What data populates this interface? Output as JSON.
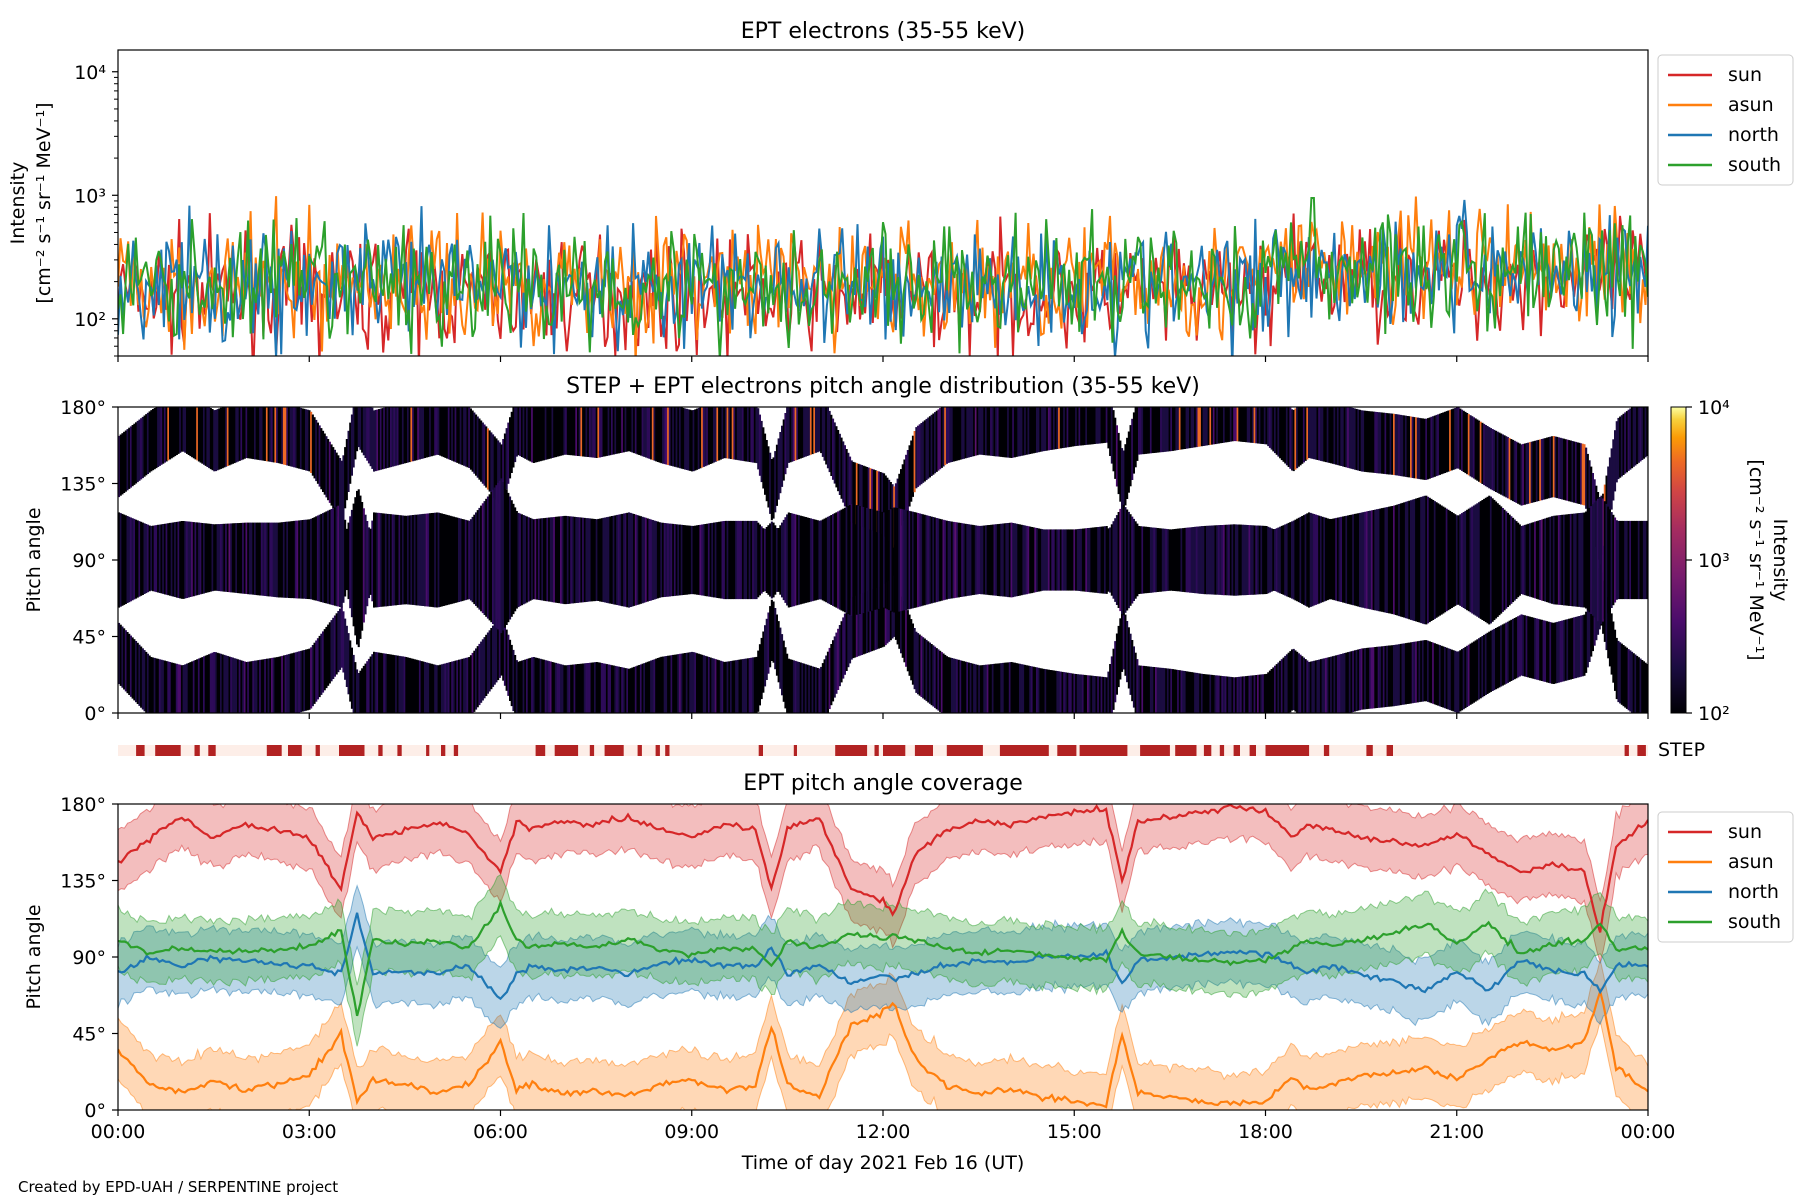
{
  "footer": "Created by EPD-UAH / SERPENTINE project",
  "chart_data": [
    {
      "type": "line",
      "title": "EPT electrons (35-55 keV)",
      "ylabel_line1": "Intensity",
      "ylabel_line2": "[cm⁻² s⁻¹ sr⁻¹ MeV⁻¹]",
      "yscale": "log",
      "ylim": [
        50,
        15000
      ],
      "yticks": [
        {
          "value": 100,
          "label": "10²"
        },
        {
          "value": 1000,
          "label": "10³"
        },
        {
          "value": 10000,
          "label": "10⁴"
        }
      ],
      "xlim": [
        "00:00",
        "24:00"
      ],
      "legend_position": "outside-right",
      "series": [
        {
          "name": "sun",
          "color": "#d62728",
          "baseline": 160,
          "spread": 0.55
        },
        {
          "name": "asun",
          "color": "#ff7f0e",
          "baseline": 200,
          "spread": 0.6
        },
        {
          "name": "north",
          "color": "#1f77b4",
          "baseline": 190,
          "spread": 0.6
        },
        {
          "name": "south",
          "color": "#2ca02c",
          "baseline": 190,
          "spread": 0.6
        }
      ],
      "notes_visible": {
        "peak_near": "18:45",
        "peak_value": 950
      }
    },
    {
      "type": "heatmap",
      "title": "STEP + EPT electrons pitch angle distribution (35-55 keV)",
      "ylabel": "Pitch angle",
      "ylim": [
        0,
        180
      ],
      "yticks": [
        "0°",
        "45°",
        "90°",
        "135°",
        "180°"
      ],
      "xlim": [
        "00:00",
        "24:00"
      ],
      "colorbar": {
        "label_line1": "Intensity",
        "label_line2": "[cm⁻² s⁻¹ sr⁻¹ MeV⁻¹]",
        "scale": "log",
        "range": [
          100,
          10000
        ],
        "ticks": [
          "10²",
          "10³",
          "10⁴"
        ],
        "colormap": "inferno"
      }
    },
    {
      "type": "timeline",
      "label": "STEP",
      "color": "#b22222",
      "background": "#fdeee8",
      "xlim": [
        "00:00",
        "24:00"
      ],
      "segments": [
        [
          "00:17",
          "00:25"
        ],
        [
          "00:35",
          "00:59"
        ],
        [
          "01:12",
          "01:17"
        ],
        [
          "01:25",
          "01:32"
        ],
        [
          "02:20",
          "02:34"
        ],
        [
          "02:40",
          "02:53"
        ],
        [
          "03:06",
          "03:10"
        ],
        [
          "03:28",
          "03:52"
        ],
        [
          "04:05",
          "04:09"
        ],
        [
          "04:23",
          "04:27"
        ],
        [
          "04:50",
          "04:53"
        ],
        [
          "05:04",
          "05:08"
        ],
        [
          "05:16",
          "05:20"
        ],
        [
          "06:33",
          "06:42"
        ],
        [
          "06:51",
          "07:13"
        ],
        [
          "07:24",
          "07:28"
        ],
        [
          "07:38",
          "07:56"
        ],
        [
          "08:09",
          "08:13"
        ],
        [
          "08:26",
          "08:30"
        ],
        [
          "08:35",
          "08:39"
        ],
        [
          "10:03",
          "10:07"
        ],
        [
          "10:36",
          "10:39"
        ],
        [
          "11:15",
          "11:45"
        ],
        [
          "11:52",
          "11:56"
        ],
        [
          "12:00",
          "12:21"
        ],
        [
          "12:30",
          "12:47"
        ],
        [
          "13:00",
          "13:34"
        ],
        [
          "13:50",
          "14:36"
        ],
        [
          "14:44",
          "15:02"
        ],
        [
          "15:05",
          "15:50"
        ],
        [
          "16:02",
          "16:30"
        ],
        [
          "16:35",
          "16:55"
        ],
        [
          "17:02",
          "17:09"
        ],
        [
          "17:17",
          "17:21"
        ],
        [
          "17:30",
          "17:36"
        ],
        [
          "17:45",
          "17:51"
        ],
        [
          "18:00",
          "18:41"
        ],
        [
          "18:55",
          "19:00"
        ],
        [
          "19:35",
          "19:41"
        ],
        [
          "19:54",
          "20:00"
        ],
        [
          "23:38",
          "23:42"
        ],
        [
          "23:50",
          "23:58"
        ]
      ]
    },
    {
      "type": "line",
      "title": "EPT pitch angle coverage",
      "ylabel": "Pitch angle",
      "xlabel": "Time of day 2021 Feb 16 (UT)",
      "ylim": [
        0,
        180
      ],
      "yticks": [
        "0°",
        "45°",
        "90°",
        "135°",
        "180°"
      ],
      "xlim": [
        "00:00",
        "24:00"
      ],
      "xticks": [
        "00:00",
        "03:00",
        "06:00",
        "09:00",
        "12:00",
        "15:00",
        "18:00",
        "21:00",
        "00:00"
      ],
      "legend_position": "outside-right",
      "band_halfwidth": 18,
      "series": [
        {
          "name": "sun",
          "color": "#d62728",
          "x": [
            "00:00",
            "00:30",
            "01:00",
            "01:30",
            "02:00",
            "02:30",
            "03:00",
            "03:30",
            "03:45",
            "04:00",
            "04:30",
            "05:00",
            "05:30",
            "06:00",
            "06:15",
            "06:30",
            "07:00",
            "07:30",
            "08:00",
            "08:30",
            "09:00",
            "09:30",
            "10:00",
            "10:15",
            "10:30",
            "11:00",
            "11:30",
            "12:00",
            "12:10",
            "12:30",
            "13:00",
            "13:30",
            "14:00",
            "14:30",
            "15:00",
            "15:30",
            "15:45",
            "16:00",
            "16:30",
            "17:00",
            "17:30",
            "18:00",
            "18:25",
            "18:40",
            "19:00",
            "19:30",
            "20:00",
            "20:30",
            "21:00",
            "21:30",
            "22:00",
            "22:30",
            "23:00",
            "23:15",
            "23:30",
            "24:00"
          ],
          "y": [
            145,
            160,
            172,
            160,
            168,
            165,
            160,
            130,
            175,
            160,
            165,
            170,
            162,
            140,
            170,
            165,
            170,
            168,
            172,
            165,
            160,
            168,
            165,
            130,
            165,
            172,
            130,
            123,
            115,
            150,
            165,
            170,
            168,
            172,
            175,
            177,
            135,
            170,
            172,
            175,
            178,
            176,
            160,
            168,
            165,
            160,
            158,
            155,
            162,
            150,
            140,
            145,
            140,
            105,
            155,
            170
          ]
        },
        {
          "name": "asun",
          "color": "#ff7f0e",
          "x": [
            "00:00",
            "00:30",
            "01:00",
            "01:30",
            "02:00",
            "02:30",
            "03:00",
            "03:30",
            "03:45",
            "04:00",
            "04:30",
            "05:00",
            "05:30",
            "06:00",
            "06:15",
            "06:30",
            "07:00",
            "07:30",
            "08:00",
            "08:30",
            "09:00",
            "09:30",
            "10:00",
            "10:15",
            "10:30",
            "11:00",
            "11:30",
            "12:00",
            "12:10",
            "12:30",
            "13:00",
            "13:30",
            "14:00",
            "14:30",
            "15:00",
            "15:30",
            "15:45",
            "16:00",
            "16:30",
            "17:00",
            "17:30",
            "18:00",
            "18:25",
            "18:40",
            "19:00",
            "19:30",
            "20:00",
            "20:30",
            "21:00",
            "21:30",
            "22:00",
            "22:30",
            "23:00",
            "23:15",
            "23:30",
            "24:00"
          ],
          "y": [
            35,
            15,
            10,
            18,
            12,
            15,
            20,
            45,
            5,
            18,
            15,
            10,
            15,
            40,
            12,
            15,
            10,
            12,
            8,
            15,
            18,
            12,
            15,
            50,
            14,
            8,
            50,
            57,
            63,
            30,
            15,
            10,
            12,
            8,
            5,
            3,
            45,
            10,
            8,
            5,
            3,
            5,
            20,
            12,
            15,
            20,
            22,
            25,
            18,
            30,
            40,
            35,
            40,
            70,
            25,
            10
          ]
        },
        {
          "name": "north",
          "color": "#1f77b4",
          "x": [
            "00:00",
            "00:30",
            "01:00",
            "01:30",
            "02:00",
            "02:30",
            "03:00",
            "03:30",
            "03:45",
            "04:00",
            "04:30",
            "05:00",
            "05:30",
            "06:00",
            "06:15",
            "06:30",
            "07:00",
            "07:30",
            "08:00",
            "08:30",
            "09:00",
            "09:30",
            "10:00",
            "10:15",
            "10:30",
            "11:00",
            "11:30",
            "12:00",
            "12:10",
            "12:30",
            "13:00",
            "13:30",
            "14:00",
            "14:30",
            "15:00",
            "15:30",
            "15:45",
            "16:00",
            "16:30",
            "17:00",
            "17:30",
            "18:00",
            "18:25",
            "18:40",
            "19:00",
            "19:30",
            "20:00",
            "20:30",
            "21:00",
            "21:30",
            "22:00",
            "22:30",
            "23:00",
            "23:15",
            "23:30",
            "24:00"
          ],
          "y": [
            80,
            90,
            85,
            90,
            88,
            86,
            85,
            80,
            115,
            80,
            82,
            80,
            85,
            65,
            80,
            85,
            82,
            84,
            80,
            86,
            88,
            85,
            85,
            95,
            80,
            85,
            75,
            80,
            77,
            80,
            85,
            88,
            86,
            90,
            90,
            92,
            75,
            88,
            90,
            92,
            93,
            92,
            85,
            80,
            85,
            80,
            76,
            70,
            82,
            70,
            88,
            82,
            80,
            70,
            85,
            85
          ]
        },
        {
          "name": "south",
          "color": "#2ca02c",
          "x": [
            "00:00",
            "00:30",
            "01:00",
            "01:30",
            "02:00",
            "02:30",
            "03:00",
            "03:30",
            "03:45",
            "04:00",
            "04:30",
            "05:00",
            "05:30",
            "06:00",
            "06:15",
            "06:30",
            "07:00",
            "07:30",
            "08:00",
            "08:30",
            "09:00",
            "09:30",
            "10:00",
            "10:15",
            "10:30",
            "11:00",
            "11:30",
            "12:00",
            "12:10",
            "12:30",
            "13:00",
            "13:30",
            "14:00",
            "14:30",
            "15:00",
            "15:30",
            "15:45",
            "16:00",
            "16:30",
            "17:00",
            "17:30",
            "18:00",
            "18:25",
            "18:40",
            "19:00",
            "19:30",
            "20:00",
            "20:30",
            "21:00",
            "21:30",
            "22:00",
            "22:30",
            "23:00",
            "23:15",
            "23:30",
            "24:00"
          ],
          "y": [
            100,
            92,
            95,
            93,
            94,
            94,
            96,
            105,
            55,
            100,
            98,
            100,
            95,
            120,
            100,
            96,
            98,
            96,
            100,
            94,
            92,
            95,
            95,
            85,
            100,
            95,
            105,
            100,
            103,
            100,
            95,
            92,
            94,
            90,
            90,
            88,
            105,
            92,
            90,
            88,
            87,
            88,
            95,
            100,
            96,
            100,
            104,
            110,
            98,
            110,
            92,
            98,
            100,
            110,
            95,
            95
          ]
        }
      ]
    }
  ]
}
